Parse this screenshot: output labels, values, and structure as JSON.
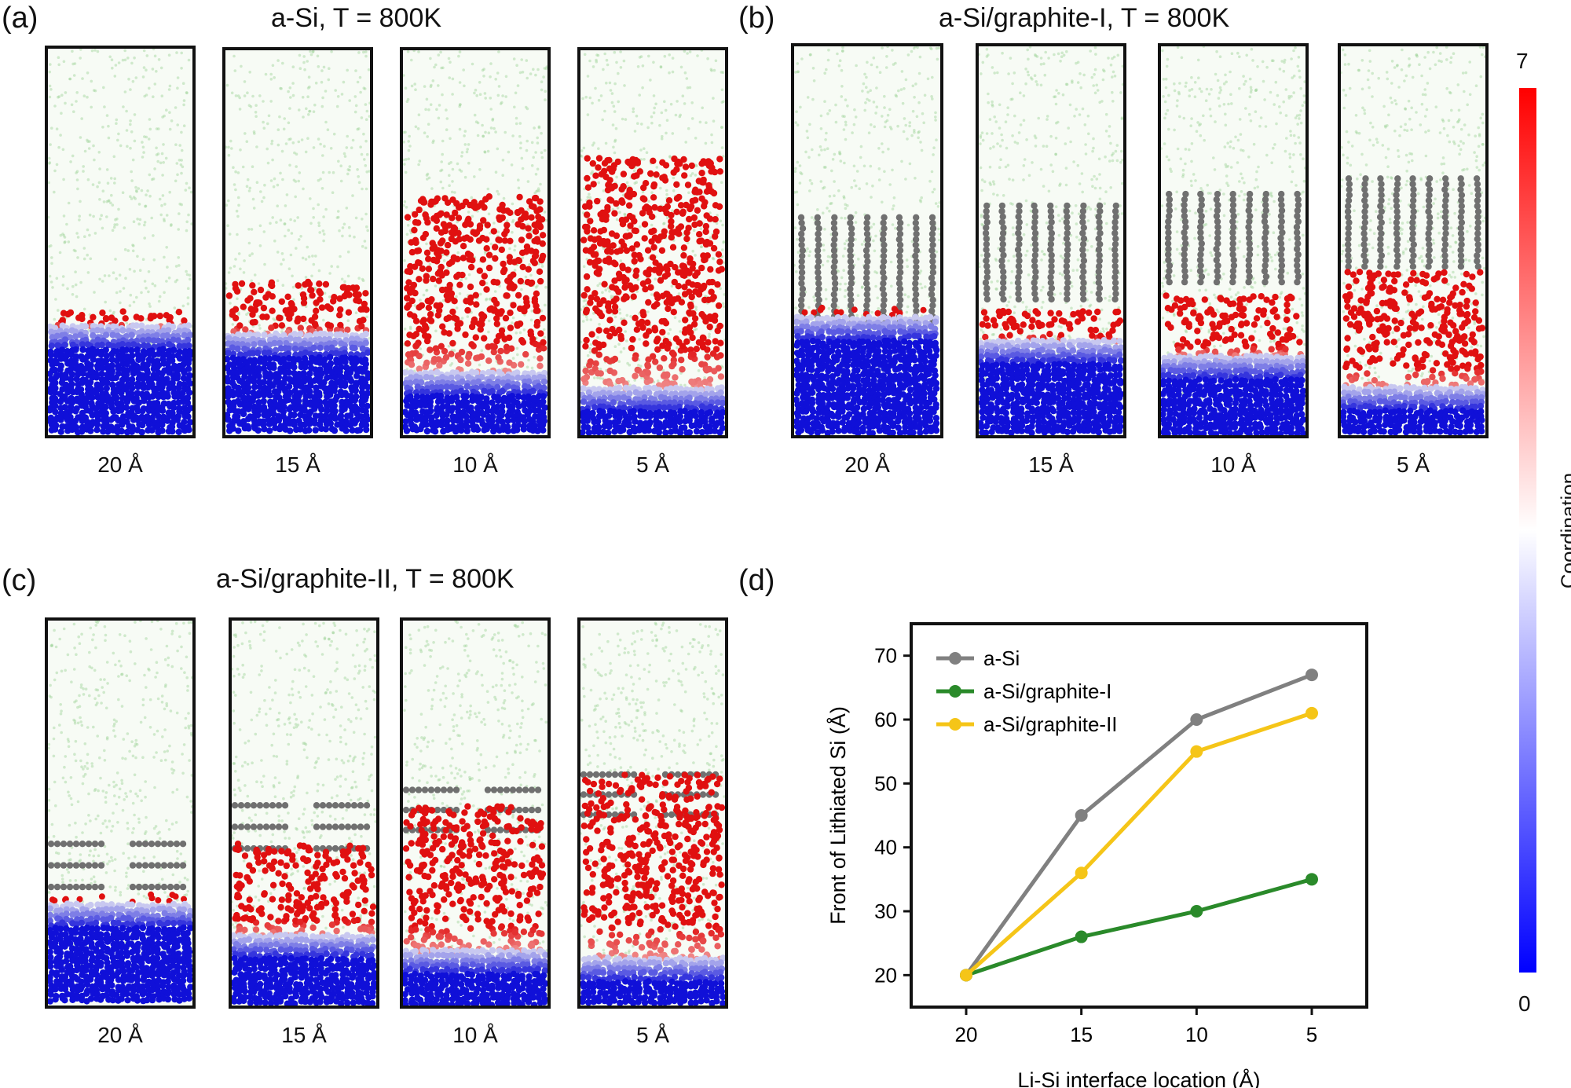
{
  "panels": [
    {
      "letter": "(a)",
      "title": "a-Si, T = 800K",
      "captions": [
        "20 Å",
        "15 Å",
        "10 Å",
        "5 Å"
      ]
    },
    {
      "letter": "(b)",
      "title": "a-Si/graphite-I, T = 800K",
      "captions": [
        "20 Å",
        "15 Å",
        "10 Å",
        "5 Å"
      ]
    },
    {
      "letter": "(c)",
      "title": "a-Si/graphite-II, T = 800K",
      "captions": [
        "20 Å",
        "15 Å",
        "10 Å",
        "5 Å"
      ]
    },
    {
      "letter": "(d)"
    }
  ],
  "colorbar": {
    "max": "7",
    "min": "0",
    "label": "Coordination",
    "colors": [
      "#ff0000",
      "#ffffff",
      "#0000ff"
    ]
  },
  "atom_colors": {
    "lithium": "#9ed39a",
    "silicon_low": "#1010d8",
    "silicon_high": "#e01010",
    "graphite": "#707070"
  },
  "chart_data": {
    "type": "line",
    "x": [
      "20",
      "15",
      "10",
      "5"
    ],
    "xlabel": "Li-Si interface location (Å)",
    "ylabel": "Front of Lithiated Si (Å)",
    "ylim": [
      15,
      75
    ],
    "yticks": [
      20,
      30,
      40,
      50,
      60,
      70
    ],
    "legend_position": "top-left",
    "series": [
      {
        "name": "a-Si",
        "values": [
          20,
          45,
          60,
          67
        ],
        "color": "#808080"
      },
      {
        "name": "a-Si/graphite-I",
        "values": [
          20,
          26,
          30,
          35
        ],
        "color": "#2a8a2a"
      },
      {
        "name": "a-Si/graphite-II",
        "values": [
          20,
          36,
          55,
          61
        ],
        "color": "#f5c518"
      }
    ]
  }
}
